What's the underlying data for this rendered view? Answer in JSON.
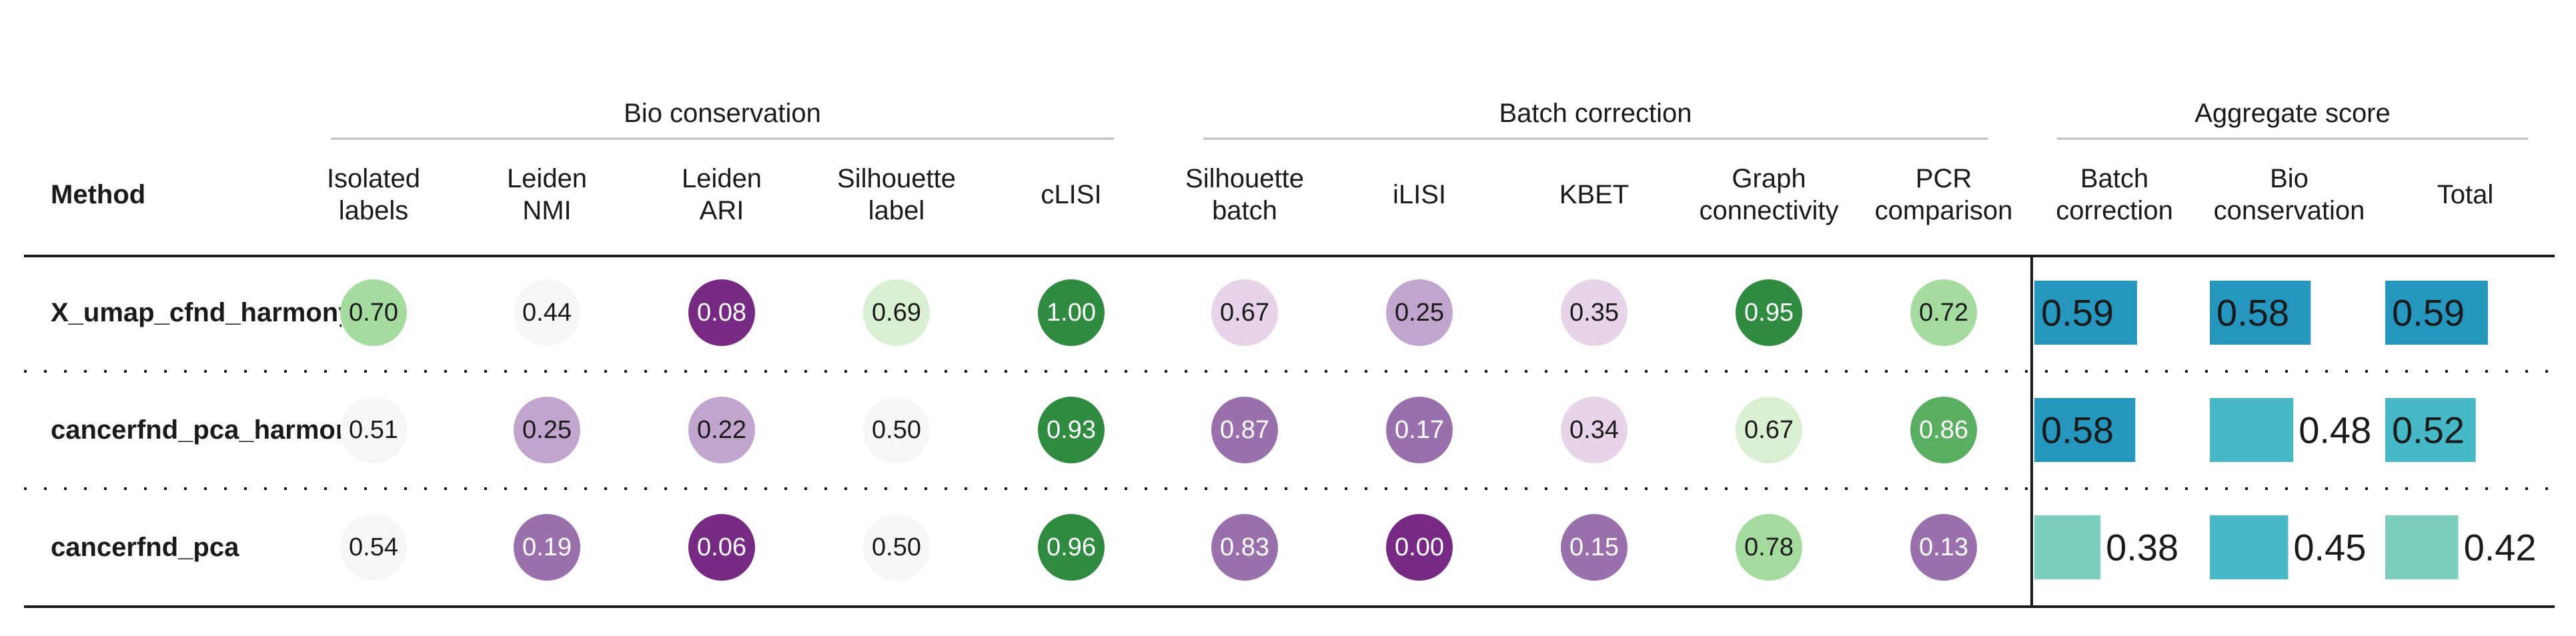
{
  "chart_data": {
    "type": "table",
    "method_header": "Method",
    "groups": [
      {
        "name": "Bio conservation",
        "columns": [
          0,
          1,
          2,
          3,
          4
        ]
      },
      {
        "name": "Batch correction",
        "columns": [
          5,
          6,
          7,
          8,
          9
        ]
      },
      {
        "name": "Aggregate score",
        "columns": [
          10,
          11,
          12
        ]
      }
    ],
    "columns": [
      {
        "label": [
          "Isolated",
          "labels"
        ],
        "style": "circle",
        "scheme": "green-on-high"
      },
      {
        "label": [
          "Leiden",
          "NMI"
        ],
        "style": "circle",
        "scheme": "green-on-high"
      },
      {
        "label": [
          "Leiden",
          "ARI"
        ],
        "style": "circle",
        "scheme": "green-on-high"
      },
      {
        "label": [
          "Silhouette",
          "label"
        ],
        "style": "circle",
        "scheme": "green-on-high"
      },
      {
        "label": [
          "cLISI"
        ],
        "style": "circle",
        "scheme": "green-on-high"
      },
      {
        "label": [
          "Silhouette",
          "batch"
        ],
        "style": "circle",
        "scheme": "purple-on-high"
      },
      {
        "label": [
          "iLISI"
        ],
        "style": "circle",
        "scheme": "green-on-high"
      },
      {
        "label": [
          "KBET"
        ],
        "style": "circle",
        "scheme": "green-on-high"
      },
      {
        "label": [
          "Graph",
          "connectivity"
        ],
        "style": "circle",
        "scheme": "green-on-high"
      },
      {
        "label": [
          "PCR",
          "comparison"
        ],
        "style": "circle",
        "scheme": "green-on-high"
      },
      {
        "label": [
          "Batch",
          "correction"
        ],
        "style": "bar"
      },
      {
        "label": [
          "Bio",
          "conservation"
        ],
        "style": "bar"
      },
      {
        "label": [
          "Total"
        ],
        "style": "bar"
      }
    ],
    "rows": [
      {
        "method": "X_umap_cfnd_harmony",
        "values": [
          "0.70",
          "0.44",
          "0.08",
          "0.69",
          "1.00",
          "0.67",
          "0.25",
          "0.35",
          "0.95",
          "0.72",
          "0.59",
          "0.58",
          "0.59"
        ]
      },
      {
        "method": "cancerfnd_pca_harmony",
        "values": [
          "0.51",
          "0.25",
          "0.22",
          "0.50",
          "0.93",
          "0.87",
          "0.17",
          "0.34",
          "0.67",
          "0.86",
          "0.58",
          "0.48",
          "0.52"
        ]
      },
      {
        "method": "cancerfnd_pca",
        "values": [
          "0.54",
          "0.19",
          "0.06",
          "0.50",
          "0.96",
          "0.83",
          "0.00",
          "0.15",
          "0.78",
          "0.13",
          "0.38",
          "0.45",
          "0.42"
        ]
      }
    ],
    "colors": {
      "green_dark": "#2e8b40",
      "green_mid": "#5aae61",
      "green_light": "#a6dba0",
      "green_pale": "#d9f0d3",
      "neutral": "#f7f7f7",
      "purple_pale": "#e7d4e8",
      "purple_light": "#c2a5cf",
      "purple_mid": "#9970ab",
      "purple_dark": "#762a83",
      "bar_high": "#2596be",
      "bar_mid": "#47b8c6",
      "bar_low": "#7dcfbd"
    }
  }
}
